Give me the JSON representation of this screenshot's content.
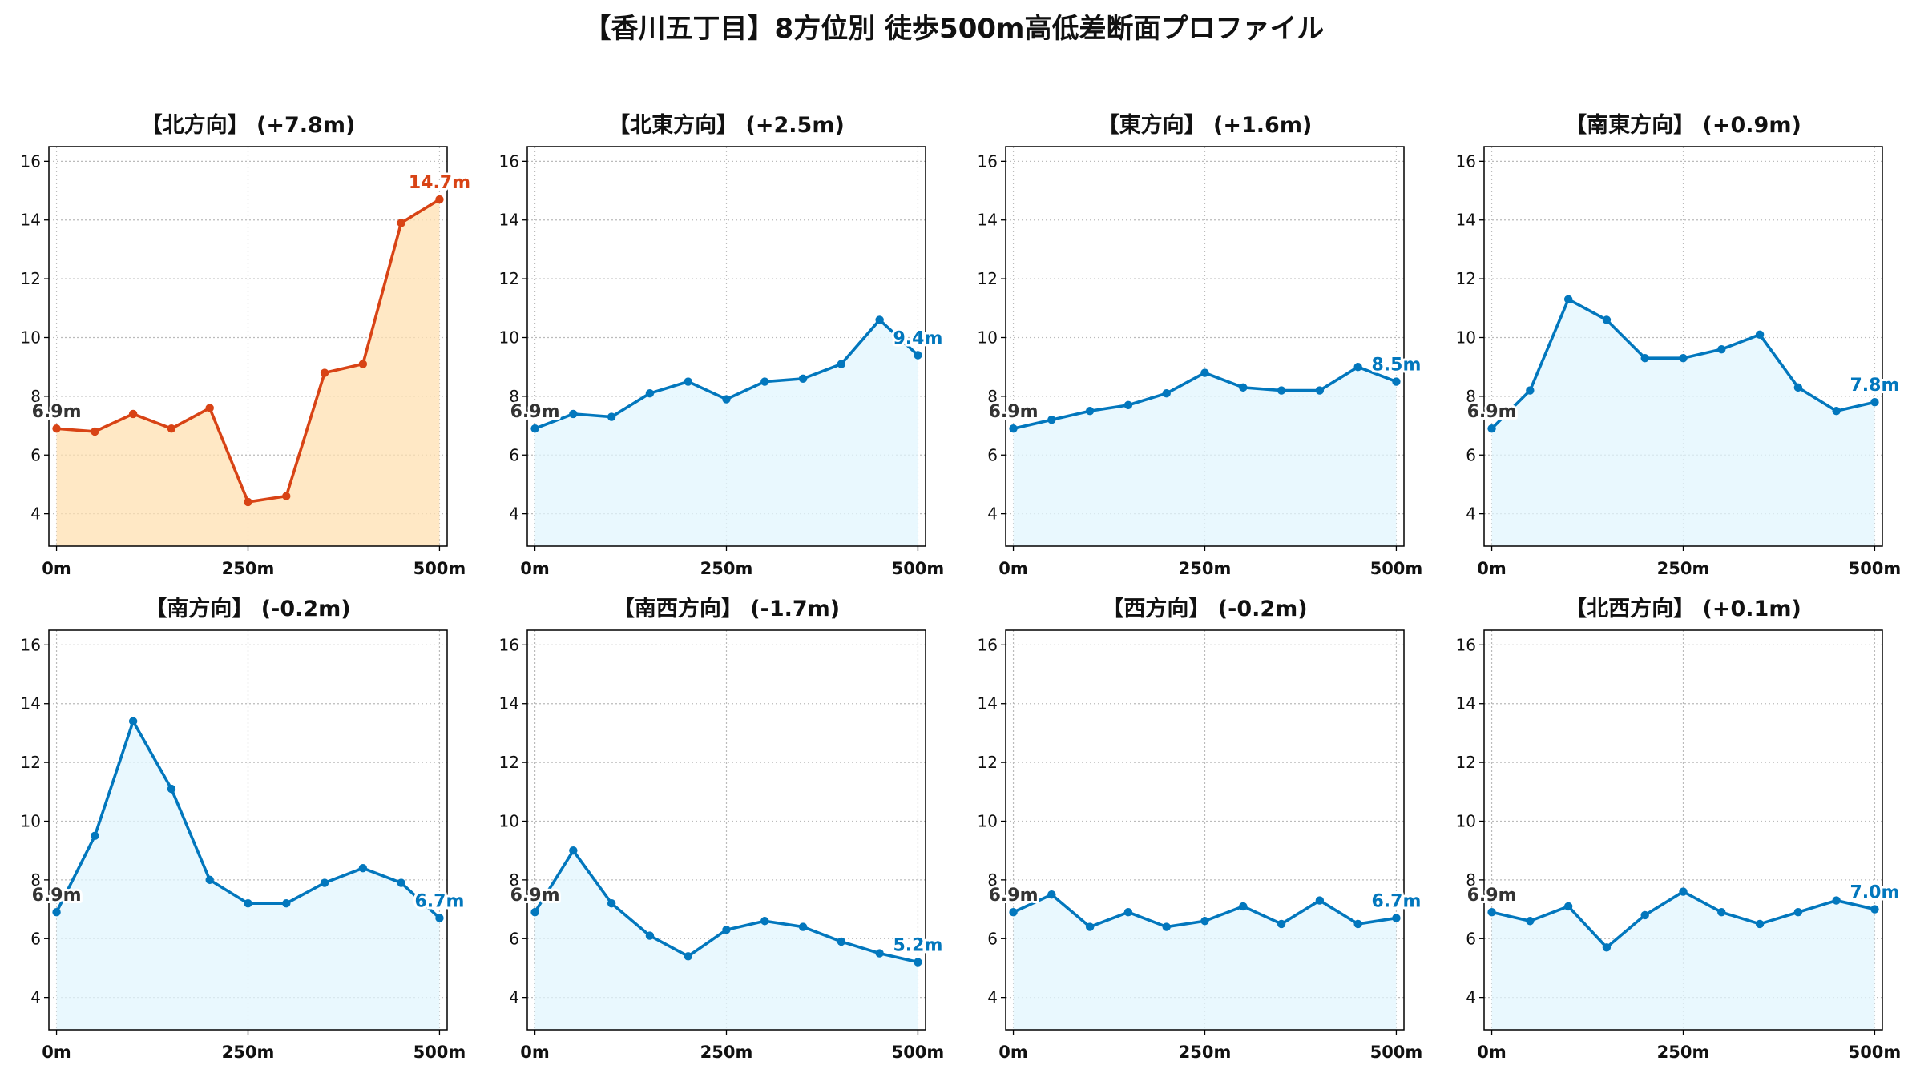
{
  "title": "【香川五丁目】8方位別 徒歩500m高低差断面プロファイル",
  "colors": {
    "highlight_line": "#d84315",
    "highlight_fill": "#ffe0b2",
    "normal_line": "#0277bd",
    "normal_fill": "#e1f5fe",
    "start_label": "#333333",
    "grid": "#bbbbbb",
    "axis": "#000000"
  },
  "chart_data": [
    {
      "type": "area",
      "title": "【北方向】 (+7.8m)",
      "highlight": true,
      "x": [
        0,
        50,
        100,
        150,
        200,
        250,
        300,
        350,
        400,
        450,
        500
      ],
      "y": [
        6.9,
        6.8,
        7.4,
        6.9,
        7.6,
        4.4,
        4.6,
        8.8,
        9.1,
        13.9,
        14.7
      ],
      "start_label": "6.9m",
      "end_label": "14.7m",
      "xticks": [
        "0m",
        "250m",
        "500m"
      ],
      "xtick_values": [
        0,
        250,
        500
      ],
      "yticks": [
        4,
        6,
        8,
        10,
        12,
        14,
        16
      ],
      "xlim": [
        -10,
        510
      ],
      "ylim": [
        2.9,
        16.5
      ],
      "grid": true
    },
    {
      "type": "area",
      "title": "【北東方向】 (+2.5m)",
      "highlight": false,
      "x": [
        0,
        50,
        100,
        150,
        200,
        250,
        300,
        350,
        400,
        450,
        500
      ],
      "y": [
        6.9,
        7.4,
        7.3,
        8.1,
        8.5,
        7.9,
        8.5,
        8.6,
        9.1,
        10.6,
        9.4
      ],
      "start_label": "6.9m",
      "end_label": "9.4m",
      "xticks": [
        "0m",
        "250m",
        "500m"
      ],
      "xtick_values": [
        0,
        250,
        500
      ],
      "yticks": [
        4,
        6,
        8,
        10,
        12,
        14,
        16
      ],
      "xlim": [
        -10,
        510
      ],
      "ylim": [
        2.9,
        16.5
      ],
      "grid": true
    },
    {
      "type": "area",
      "title": "【東方向】 (+1.6m)",
      "highlight": false,
      "x": [
        0,
        50,
        100,
        150,
        200,
        250,
        300,
        350,
        400,
        450,
        500
      ],
      "y": [
        6.9,
        7.2,
        7.5,
        7.7,
        8.1,
        8.8,
        8.3,
        8.2,
        8.2,
        9.0,
        8.5
      ],
      "start_label": "6.9m",
      "end_label": "8.5m",
      "xticks": [
        "0m",
        "250m",
        "500m"
      ],
      "xtick_values": [
        0,
        250,
        500
      ],
      "yticks": [
        4,
        6,
        8,
        10,
        12,
        14,
        16
      ],
      "xlim": [
        -10,
        510
      ],
      "ylim": [
        2.9,
        16.5
      ],
      "grid": true
    },
    {
      "type": "area",
      "title": "【南東方向】 (+0.9m)",
      "highlight": false,
      "x": [
        0,
        50,
        100,
        150,
        200,
        250,
        300,
        350,
        400,
        450,
        500
      ],
      "y": [
        6.9,
        8.2,
        11.3,
        10.6,
        9.3,
        9.3,
        9.6,
        10.1,
        8.3,
        7.5,
        7.8
      ],
      "start_label": "6.9m",
      "end_label": "7.8m",
      "xticks": [
        "0m",
        "250m",
        "500m"
      ],
      "xtick_values": [
        0,
        250,
        500
      ],
      "yticks": [
        4,
        6,
        8,
        10,
        12,
        14,
        16
      ],
      "xlim": [
        -10,
        510
      ],
      "ylim": [
        2.9,
        16.5
      ],
      "grid": true
    },
    {
      "type": "area",
      "title": "【南方向】 (-0.2m)",
      "highlight": false,
      "x": [
        0,
        50,
        100,
        150,
        200,
        250,
        300,
        350,
        400,
        450,
        500
      ],
      "y": [
        6.9,
        9.5,
        13.4,
        11.1,
        8.0,
        7.2,
        7.2,
        7.9,
        8.4,
        7.9,
        6.7
      ],
      "start_label": "6.9m",
      "end_label": "6.7m",
      "xticks": [
        "0m",
        "250m",
        "500m"
      ],
      "xtick_values": [
        0,
        250,
        500
      ],
      "yticks": [
        4,
        6,
        8,
        10,
        12,
        14,
        16
      ],
      "xlim": [
        -10,
        510
      ],
      "ylim": [
        2.9,
        16.5
      ],
      "grid": true
    },
    {
      "type": "area",
      "title": "【南西方向】 (-1.7m)",
      "highlight": false,
      "x": [
        0,
        50,
        100,
        150,
        200,
        250,
        300,
        350,
        400,
        450,
        500
      ],
      "y": [
        6.9,
        9.0,
        7.2,
        6.1,
        5.4,
        6.3,
        6.6,
        6.4,
        5.9,
        5.5,
        5.2
      ],
      "start_label": "6.9m",
      "end_label": "5.2m",
      "xticks": [
        "0m",
        "250m",
        "500m"
      ],
      "xtick_values": [
        0,
        250,
        500
      ],
      "yticks": [
        4,
        6,
        8,
        10,
        12,
        14,
        16
      ],
      "xlim": [
        -10,
        510
      ],
      "ylim": [
        2.9,
        16.5
      ],
      "grid": true
    },
    {
      "type": "area",
      "title": "【西方向】 (-0.2m)",
      "highlight": false,
      "x": [
        0,
        50,
        100,
        150,
        200,
        250,
        300,
        350,
        400,
        450,
        500
      ],
      "y": [
        6.9,
        7.5,
        6.4,
        6.9,
        6.4,
        6.6,
        7.1,
        6.5,
        7.3,
        6.5,
        6.7
      ],
      "start_label": "6.9m",
      "end_label": "6.7m",
      "xticks": [
        "0m",
        "250m",
        "500m"
      ],
      "xtick_values": [
        0,
        250,
        500
      ],
      "yticks": [
        4,
        6,
        8,
        10,
        12,
        14,
        16
      ],
      "xlim": [
        -10,
        510
      ],
      "ylim": [
        2.9,
        16.5
      ],
      "grid": true
    },
    {
      "type": "area",
      "title": "【北西方向】 (+0.1m)",
      "highlight": false,
      "x": [
        0,
        50,
        100,
        150,
        200,
        250,
        300,
        350,
        400,
        450,
        500
      ],
      "y": [
        6.9,
        6.6,
        7.1,
        5.7,
        6.8,
        7.6,
        6.9,
        6.5,
        6.9,
        7.3,
        7.0
      ],
      "start_label": "6.9m",
      "end_label": "7.0m",
      "xticks": [
        "0m",
        "250m",
        "500m"
      ],
      "xtick_values": [
        0,
        250,
        500
      ],
      "yticks": [
        4,
        6,
        8,
        10,
        12,
        14,
        16
      ],
      "xlim": [
        -10,
        510
      ],
      "ylim": [
        2.9,
        16.5
      ],
      "grid": true
    }
  ]
}
